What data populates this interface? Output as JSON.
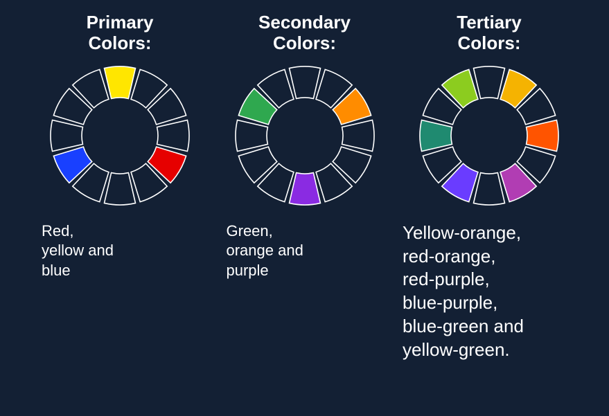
{
  "background_color": "#132034",
  "text_color": "#ffffff",
  "wheel": {
    "segments": 12,
    "outer_radius": 100,
    "inner_radius": 55,
    "gap_deg": 4,
    "empty_fill": "#132034",
    "stroke": "#ffffff",
    "stroke_width": 1.6
  },
  "columns": [
    {
      "title": "Primary\nColors:",
      "caption": "Red,\nyellow and\nblue",
      "caption_class": "caption",
      "fills": {
        "0": "#ffe600",
        "4": "#e60000",
        "8": "#1940ff"
      }
    },
    {
      "title": "Secondary\nColors:",
      "caption": "Green,\norange and\npurple",
      "caption_class": "caption",
      "fills": {
        "2": "#ff8c00",
        "6": "#8a2be2",
        "10": "#2fa84f"
      }
    },
    {
      "title": "Tertiary\nColors:",
      "caption": "Yellow-orange,\nred-orange,\nred-purple,\nblue-purple,\nblue-green and\nyellow-green.",
      "caption_class": "caption big",
      "fills": {
        "1": "#f5b301",
        "3": "#ff5400",
        "5": "#b13db3",
        "7": "#6a3cff",
        "9": "#1f8a70",
        "11": "#8ccc1f"
      }
    }
  ]
}
